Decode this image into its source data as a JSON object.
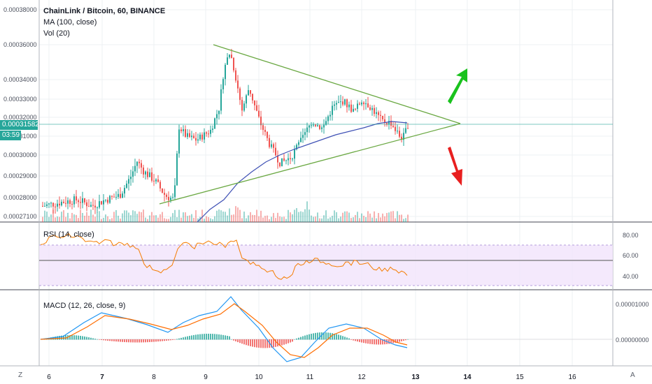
{
  "legend": {
    "symbol": "ChainLink / Bitcoin, 60, BINANCE",
    "ma": "MA (100, close)",
    "vol": "Vol (20)",
    "rsi": "RSI (14, close)",
    "macd": "MACD (12, 26, close, 9)"
  },
  "price_axis": [
    "0.00038000",
    "0.00036000",
    "0.00034000",
    "0.00033000",
    "0.00032000",
    "0.00031000",
    "0.00030000",
    "0.00029000",
    "0.00028000",
    "0.00027100"
  ],
  "last_price": "0.00031582",
  "countdown": "03:59",
  "rsi_axis": [
    "80.00",
    "60.00",
    "40.00"
  ],
  "macd_axis": [
    "0.00001000",
    "0.00000000"
  ],
  "time_axis": [
    "6",
    "7",
    "8",
    "9",
    "10",
    "11",
    "12",
    "13",
    "14",
    "15",
    "16"
  ],
  "corner_left": "Z",
  "corner_right": "A",
  "colors": {
    "up": "#26a69a",
    "down": "#ef5350",
    "trend": "#6aa842",
    "ma": "#3f51b5",
    "rsi": "#f57c00",
    "rsi_band": "#f1e3fb",
    "arrow_up": "#19c21d",
    "arrow_down": "#e81f1f",
    "current": "#26a69a"
  }
}
